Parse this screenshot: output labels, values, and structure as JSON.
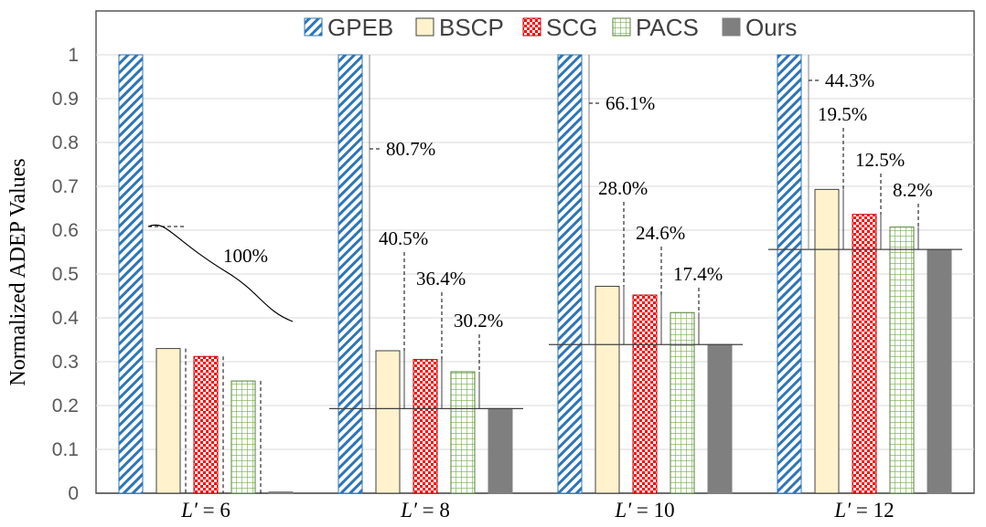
{
  "chart_data": {
    "type": "bar",
    "ylabel": "Normalized ADEP Values",
    "ylim": [
      0,
      1
    ],
    "ytick_labels": [
      "0",
      "0.1",
      "0.2",
      "0.3",
      "0.4",
      "0.5",
      "0.6",
      "0.7",
      "0.8",
      "0.9",
      "1"
    ],
    "grid": true,
    "legend_position": "top",
    "categories": [
      {
        "italic": "L′",
        "rest": " = 6"
      },
      {
        "italic": "L′",
        "rest": " = 8"
      },
      {
        "italic": "L′",
        "rest": " = 10"
      },
      {
        "italic": "L′",
        "rest": " = 12"
      }
    ],
    "series": [
      {
        "name": "GPEB",
        "pattern": "diagonal-hatch",
        "fill": "#ffffff",
        "stroke": "#2e75b6",
        "values": [
          1.0,
          1.0,
          1.0,
          1.0
        ]
      },
      {
        "name": "BSCP",
        "pattern": "solid",
        "fill": "#fff2cc",
        "stroke": "#404040",
        "values": [
          0.33,
          0.325,
          0.472,
          0.693
        ]
      },
      {
        "name": "SCG",
        "pattern": "checker",
        "fill": "#ffffff",
        "stroke": "#ff0000",
        "values": [
          0.312,
          0.305,
          0.452,
          0.636
        ]
      },
      {
        "name": "PACS",
        "pattern": "grid",
        "fill": "#ffffff",
        "stroke": "#70ad47",
        "values": [
          0.256,
          0.277,
          0.412,
          0.607
        ]
      },
      {
        "name": "Ours",
        "pattern": "solid",
        "fill": "#7f7f7f",
        "stroke": "#7f7f7f",
        "values": [
          0.003,
          0.193,
          0.339,
          0.556
        ]
      }
    ],
    "annotations": [
      [
        "100%"
      ],
      [
        "80.7%",
        "40.5%",
        "36.4%",
        "30.2%"
      ],
      [
        "66.1%",
        "28.0%",
        "24.6%",
        "17.4%"
      ],
      [
        "44.3%",
        "19.5%",
        "12.5%",
        "8.2%"
      ]
    ]
  }
}
